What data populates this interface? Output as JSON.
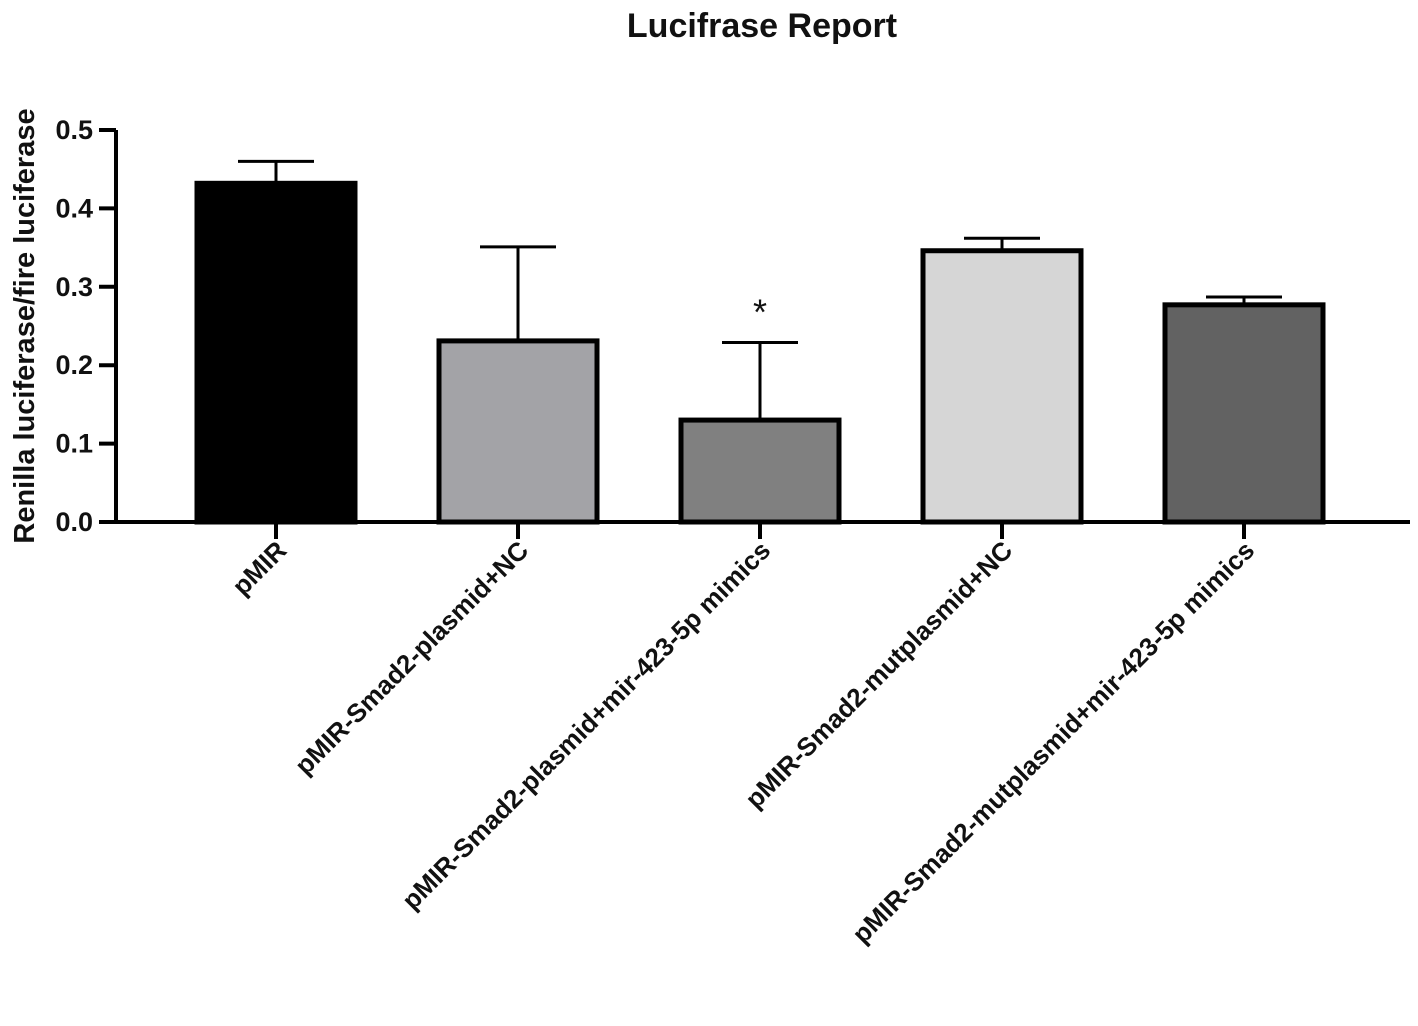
{
  "chart_data": {
    "type": "bar",
    "title": "Lucifrase Report",
    "xlabel": "",
    "ylabel": "Renilla luciferase/fire luciferase",
    "ylim": [
      0,
      0.5
    ],
    "yticks": [
      "0.0",
      "0.1",
      "0.2",
      "0.3",
      "0.4",
      "0.5"
    ],
    "categories": [
      "pMIR",
      "pMIR-Smad2-plasmid+NC",
      "pMIR-Smad2-plasmid+mir-423-5p mimics",
      "pMIR-Smad2-mutplasmid+NC",
      "pMIR-Smad2-mutplasmid+mir-423-5p mimics"
    ],
    "values": [
      0.432,
      0.231,
      0.13,
      0.346,
      0.277
    ],
    "errors": [
      0.028,
      0.12,
      0.099,
      0.016,
      0.01
    ],
    "bar_colors": [
      "#000000",
      "#a3a3a7",
      "#808080",
      "#d6d6d6",
      "#626262"
    ],
    "annotations": [
      {
        "category_index": 2,
        "text": "*"
      }
    ],
    "grid": false,
    "legend": "none"
  }
}
